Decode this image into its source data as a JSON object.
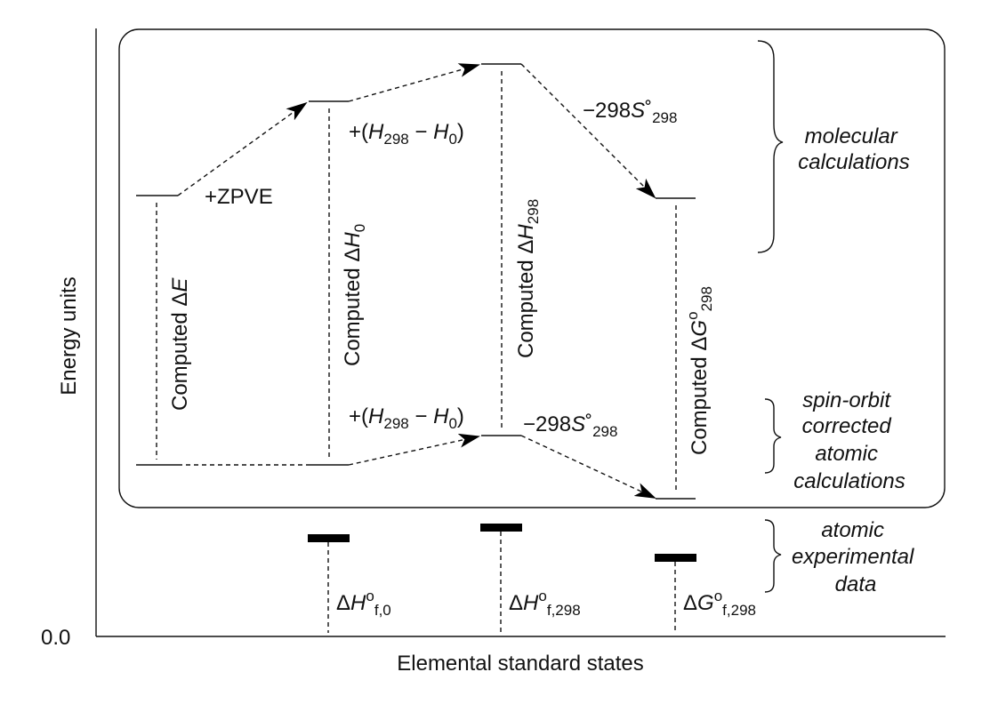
{
  "axes": {
    "y_label": "Energy units",
    "x_label": "Elemental standard states",
    "origin_label": "0.0"
  },
  "molecular": {
    "step_zpve": "+ZPVE",
    "step_enthalpy": {
      "open": "+(",
      "h298": "H",
      "h298_sub": "298",
      "minus": " − ",
      "h0": "H",
      "h0_sub": "0",
      "close": ")"
    },
    "step_entropy": {
      "prefix": "−298",
      "s": "S",
      "deg": "˚",
      "sub": "298"
    }
  },
  "atomic": {
    "step_enthalpy": {
      "open": "+(",
      "h298": "H",
      "h298_sub": "298",
      "minus": " − ",
      "h0": "H",
      "h0_sub": "0",
      "close": ")"
    },
    "step_entropy": {
      "prefix": "−298",
      "s": "S",
      "deg": "˚",
      "sub": "298"
    }
  },
  "vertical_labels": {
    "dE": {
      "prefix": "Computed Δ",
      "var": "E"
    },
    "dH0": {
      "prefix": "Computed Δ",
      "var": "H",
      "sub": "0"
    },
    "dH298": {
      "prefix": "Computed Δ",
      "var": "H",
      "sub": "298"
    },
    "dG298": {
      "prefix": "Computed Δ",
      "var": "G",
      "sup": "o",
      "sub": "298"
    }
  },
  "experimental": {
    "dHf0": {
      "delta": "Δ",
      "var": "H",
      "sup": "o",
      "sub": "f,0"
    },
    "dHf298": {
      "delta": "Δ",
      "var": "H",
      "sup": "o",
      "sub": "f,298"
    },
    "dGf298": {
      "delta": "Δ",
      "var": "G",
      "sup": "o",
      "sub": "f,298"
    }
  },
  "groups": {
    "molecular": [
      "molecular",
      "calculations"
    ],
    "atomic_calc": [
      "spin-orbit",
      "corrected",
      "atomic",
      "calculations"
    ],
    "atomic_exp": [
      "atomic",
      "experimental",
      "data"
    ]
  }
}
